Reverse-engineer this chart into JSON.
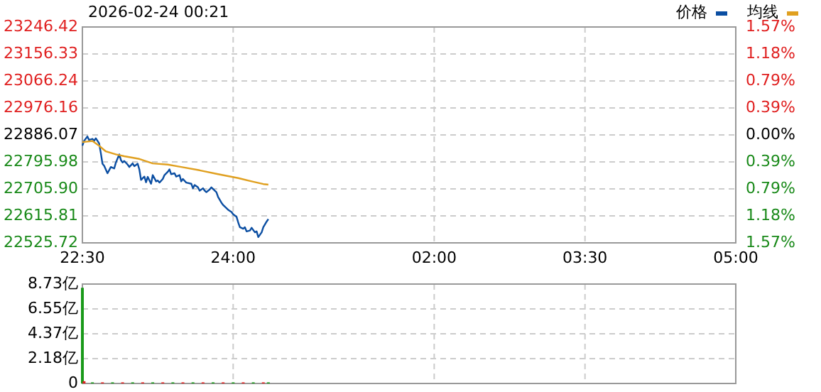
{
  "chart_data": [
    {
      "type": "line",
      "title": "2026-02-24 00:21",
      "legend": "top right",
      "grid": true,
      "xlim": [
        "2026-02-23T22:30",
        "2026-02-24T05:00"
      ],
      "xticks": [
        {
          "value": "2026-02-23T22:30",
          "label": "22:30"
        },
        {
          "value": "2026-02-24T00:00",
          "label": "24:00"
        },
        {
          "value": "2026-02-24T02:00",
          "label": "02:00"
        },
        {
          "value": "2026-02-24T03:30",
          "label": "03:30"
        },
        {
          "value": "2026-02-24T05:00",
          "label": "05:00"
        }
      ],
      "ylim": [
        22525.72,
        23246.42
      ],
      "yticks": [
        22525.72,
        22615.81,
        {
          "value": 22705.9,
          "label": "22705.90"
        },
        22795.98,
        22886.07,
        22976.16,
        23066.24,
        23156.33,
        23246.42
      ],
      "y2lim": [
        -1.57,
        1.57
      ],
      "y2ticks": [
        {
          "value": -1.57,
          "label": "1.57%"
        },
        {
          "value": -1.18,
          "label": "1.18%"
        },
        {
          "value": -0.79,
          "label": "0.79%"
        },
        {
          "value": -0.39,
          "label": "0.39%"
        },
        {
          "value": 0,
          "label": "0.00%"
        },
        {
          "value": 0.39,
          "label": "0.39%"
        },
        {
          "value": 0.79,
          "label": "0.79%"
        },
        {
          "value": 1.18,
          "label": "1.18%"
        },
        {
          "value": 1.57,
          "label": "1.57%"
        }
      ],
      "series": [
        {
          "name": "价格",
          "color": "#0b4ea2",
          "x": [
            "2026-02-23T22:30",
            "2026-02-23T22:31",
            "2026-02-23T22:33",
            "2026-02-23T22:34",
            "2026-02-23T22:36",
            "2026-02-23T22:37",
            "2026-02-23T22:38",
            "2026-02-23T22:40",
            "2026-02-23T22:41",
            "2026-02-23T22:42",
            "2026-02-23T22:43",
            "2026-02-23T22:45",
            "2026-02-23T22:47",
            "2026-02-23T22:49",
            "2026-02-23T22:50",
            "2026-02-23T22:52",
            "2026-02-23T22:53",
            "2026-02-23T22:54",
            "2026-02-23T22:55",
            "2026-02-23T22:57",
            "2026-02-23T22:58",
            "2026-02-23T23:00",
            "2026-02-23T23:01",
            "2026-02-23T23:03",
            "2026-02-23T23:04",
            "2026-02-23T23:05",
            "2026-02-23T23:07",
            "2026-02-23T23:08",
            "2026-02-23T23:09",
            "2026-02-23T23:11",
            "2026-02-23T23:12",
            "2026-02-23T23:14",
            "2026-02-23T23:15",
            "2026-02-23T23:16",
            "2026-02-23T23:18",
            "2026-02-23T23:19",
            "2026-02-23T23:21",
            "2026-02-23T23:22",
            "2026-02-23T23:23",
            "2026-02-23T23:25",
            "2026-02-23T23:26",
            "2026-02-23T23:28",
            "2026-02-23T23:29",
            "2026-02-23T23:30",
            "2026-02-23T23:32",
            "2026-02-23T23:35",
            "2026-02-23T23:36",
            "2026-02-23T23:37",
            "2026-02-23T23:39",
            "2026-02-23T23:40",
            "2026-02-23T23:42",
            "2026-02-23T23:43",
            "2026-02-23T23:44",
            "2026-02-23T23:46",
            "2026-02-23T23:47",
            "2026-02-23T23:49",
            "2026-02-23T23:50",
            "2026-02-23T23:51",
            "2026-02-23T23:53",
            "2026-02-23T23:54",
            "2026-02-23T23:57",
            "2026-02-23T23:59",
            "2026-02-24T00:00",
            "2026-02-24T00:02",
            "2026-02-24T00:03",
            "2026-02-24T00:04",
            "2026-02-24T00:06",
            "2026-02-24T00:07",
            "2026-02-24T00:08",
            "2026-02-24T00:10",
            "2026-02-24T00:11",
            "2026-02-24T00:13",
            "2026-02-24T00:14",
            "2026-02-24T00:15",
            "2026-02-24T00:17",
            "2026-02-24T00:18",
            "2026-02-24T00:20",
            "2026-02-24T00:21"
          ],
          "values": [
            22850,
            22866,
            22881,
            22869,
            22873,
            22866,
            22875,
            22858,
            22826,
            22790,
            22783,
            22758,
            22779,
            22774,
            22794,
            22821,
            22802,
            22794,
            22799,
            22787,
            22779,
            22791,
            22782,
            22790,
            22771,
            22736,
            22747,
            22728,
            22746,
            22723,
            22752,
            22731,
            22734,
            22727,
            22739,
            22752,
            22763,
            22771,
            22755,
            22758,
            22747,
            22752,
            22731,
            22739,
            22727,
            22723,
            22708,
            22719,
            22711,
            22700,
            22708,
            22700,
            22695,
            22704,
            22711,
            22700,
            22695,
            22679,
            22660,
            22652,
            22636,
            22629,
            22621,
            22613,
            22594,
            22578,
            22573,
            22578,
            22564,
            22567,
            22576,
            22561,
            22564,
            22545,
            22561,
            22578,
            22597,
            22605
          ]
        },
        {
          "name": "均线",
          "color": "#e0a020",
          "x": [
            "2026-02-23T22:30",
            "2026-02-23T22:36",
            "2026-02-23T22:40",
            "2026-02-23T22:44",
            "2026-02-23T22:50",
            "2026-02-23T22:55",
            "2026-02-23T23:04",
            "2026-02-23T23:12",
            "2026-02-23T23:21",
            "2026-02-23T23:29",
            "2026-02-23T23:40",
            "2026-02-23T23:51",
            "2026-02-24T00:03",
            "2026-02-24T00:11",
            "2026-02-24T00:18",
            "2026-02-24T00:21"
          ],
          "values": [
            22862,
            22866,
            22850,
            22831,
            22821,
            22815,
            22806,
            22791,
            22787,
            22779,
            22768,
            22755,
            22742,
            22731,
            22722,
            22720
          ]
        }
      ]
    },
    {
      "type": "bar",
      "grid": true,
      "tick_labels": "y",
      "xlim": [
        "2026-02-23T22:30",
        "2026-02-24T05:00"
      ],
      "xticks": [
        {
          "value": "2026-02-23T22:30",
          "label": null
        },
        {
          "value": "2026-02-24T00:00",
          "label": null
        },
        {
          "value": "2026-02-24T02:00",
          "label": null
        },
        {
          "value": "2026-02-24T03:30",
          "label": null
        },
        {
          "value": "2026-02-24T05:00",
          "label": null
        }
      ],
      "ylim": [
        0,
        8.73
      ],
      "yticks": [
        0,
        {
          "value": 2.18,
          "label": "2.18亿"
        },
        {
          "value": 4.37,
          "label": "4.37亿"
        },
        {
          "value": 6.55,
          "label": "6.55亿"
        },
        {
          "value": 8.73,
          "label": "8.73亿"
        }
      ],
      "series": [
        {
          "x": [
            "2026-02-23T22:30",
            "2026-02-23T22:31",
            "2026-02-23T22:36",
            "2026-02-23T22:42",
            "2026-02-23T22:48",
            "2026-02-23T22:54",
            "2026-02-23T23:00",
            "2026-02-23T23:06",
            "2026-02-23T23:12",
            "2026-02-23T23:18",
            "2026-02-23T23:24",
            "2026-02-23T23:30",
            "2026-02-23T23:36",
            "2026-02-23T23:42",
            "2026-02-23T23:48",
            "2026-02-23T23:54",
            "2026-02-24T00:00",
            "2026-02-24T00:06",
            "2026-02-24T00:12",
            "2026-02-24T00:18",
            "2026-02-24T00:21"
          ],
          "values": [
            8.4,
            0.2,
            0.1,
            0.1,
            0.1,
            0.1,
            0.1,
            0.1,
            0.1,
            0.1,
            0.1,
            0.1,
            0.1,
            0.1,
            0.1,
            0.1,
            0.1,
            0.1,
            0.1,
            0.1,
            0.1
          ],
          "colors": [
            "#1a9a1a",
            "#e02020",
            "#1a9a1a",
            "#e02020",
            "#1a9a1a",
            "#e02020",
            "#1a9a1a",
            "#e02020",
            "#1a9a1a",
            "#e02020",
            "#1a9a1a",
            "#e02020",
            "#1a9a1a",
            "#e02020",
            "#1a9a1a",
            "#e02020",
            "#1a9a1a",
            "#e02020",
            "#1a9a1a",
            "#e02020",
            "#1a9a1a"
          ]
        }
      ]
    }
  ]
}
